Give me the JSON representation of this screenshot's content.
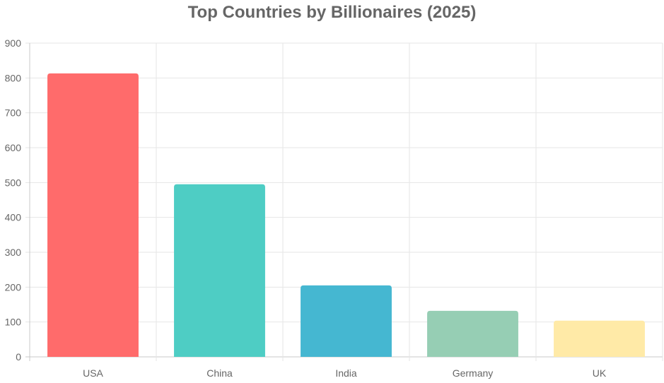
{
  "chart_data": {
    "type": "bar",
    "title": "Top Countries by Billionaires (2025)",
    "categories": [
      "USA",
      "China",
      "India",
      "Germany",
      "UK"
    ],
    "values": [
      813,
      495,
      205,
      132,
      104
    ],
    "colors": [
      "#ff6b6b",
      "#4ecdc4",
      "#45b7d1",
      "#96ceb4",
      "#ffeaa7"
    ],
    "ylim": [
      0,
      900
    ],
    "yticks": [
      "0",
      "100",
      "200",
      "300",
      "400",
      "500",
      "600",
      "700",
      "800",
      "900"
    ],
    "grid": true,
    "legend": "none"
  }
}
